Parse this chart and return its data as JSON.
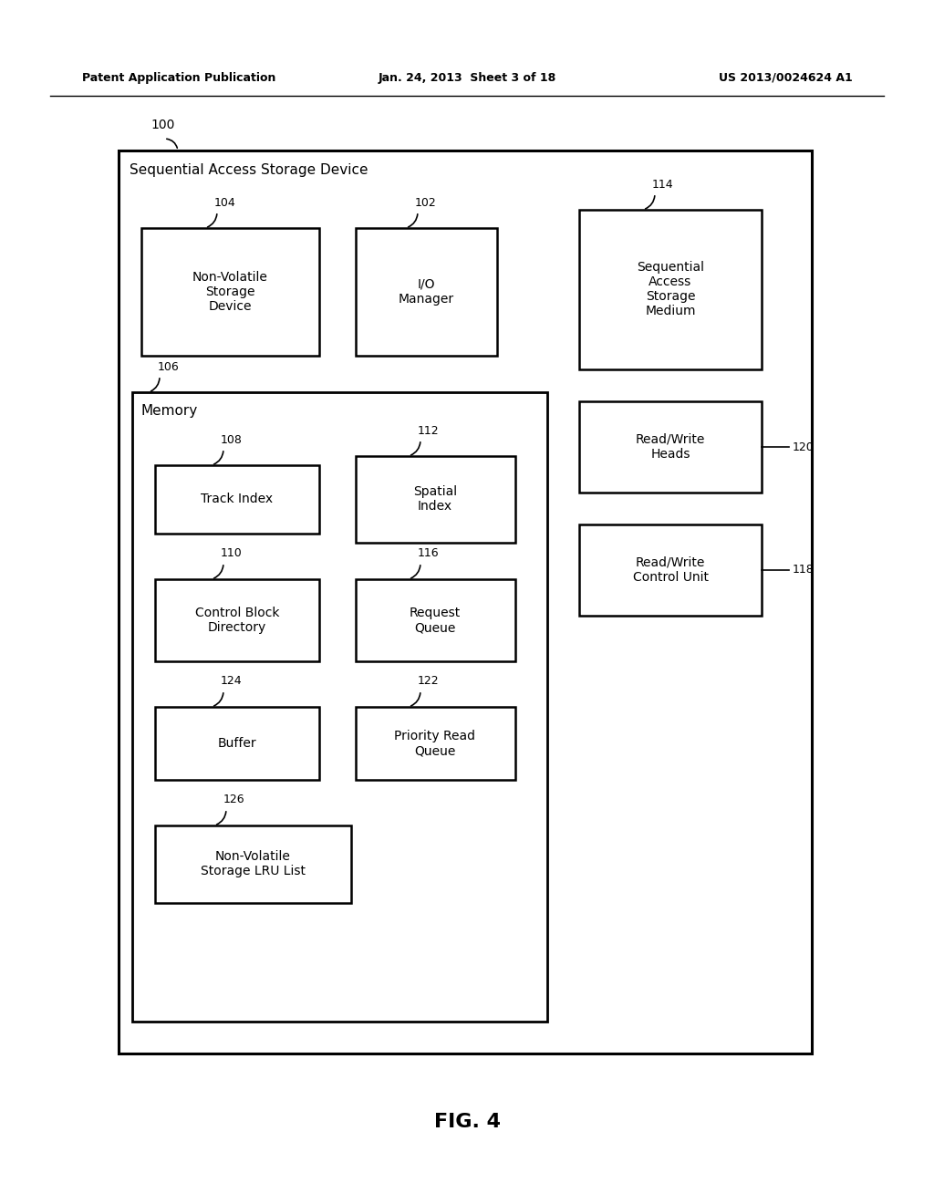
{
  "header_left": "Patent Application Publication",
  "header_center": "Jan. 24, 2013  Sheet 3 of 18",
  "header_right": "US 2013/0024624 A1",
  "fig_label": "FIG. 4",
  "outer_box_label": "Sequential Access Storage Device",
  "bg_color": "#ffffff",
  "box_edge_color": "#000000",
  "text_color": "#000000",
  "ref_100": "100",
  "boxes": {
    "nvsd": {
      "label": "Non-Volatile\nStorage\nDevice",
      "ref": "104"
    },
    "io_mgr": {
      "label": "I/O\nManager",
      "ref": "102"
    },
    "memory": {
      "label": "Memory",
      "ref": "106"
    },
    "track": {
      "label": "Track Index",
      "ref": "108"
    },
    "spatial": {
      "label": "Spatial\nIndex",
      "ref": "112"
    },
    "ctrl": {
      "label": "Control Block\nDirectory",
      "ref": "110"
    },
    "reqq": {
      "label": "Request\nQueue",
      "ref": "116"
    },
    "buffer": {
      "label": "Buffer",
      "ref": "124"
    },
    "priq": {
      "label": "Priority Read\nQueue",
      "ref": "122"
    },
    "lru": {
      "label": "Non-Volatile\nStorage LRU List",
      "ref": "126"
    },
    "sasm": {
      "label": "Sequential\nAccess\nStorage\nMedium",
      "ref": "114"
    },
    "rwh": {
      "label": "Read/Write\nHeads",
      "ref": "120"
    },
    "rwc": {
      "label": "Read/Write\nControl Unit",
      "ref": "118"
    }
  }
}
